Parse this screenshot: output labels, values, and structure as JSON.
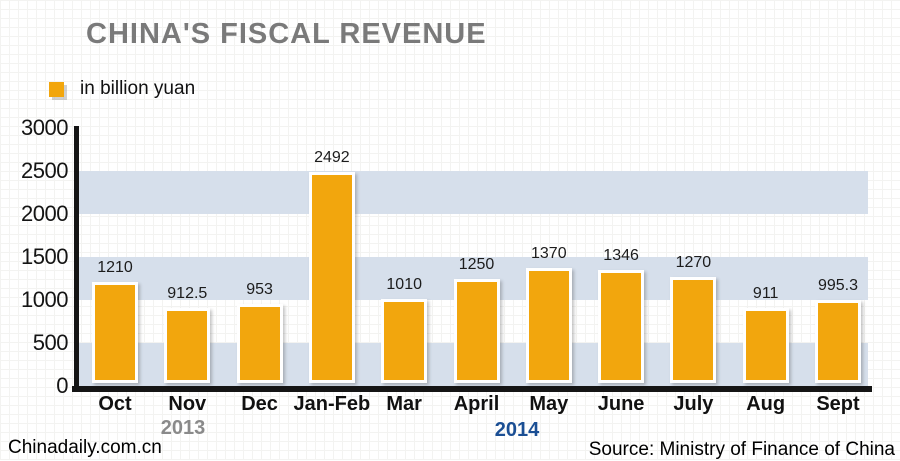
{
  "title": "CHINA'S FISCAL REVENUE",
  "legend": {
    "label": "in billion yuan",
    "swatch_color": "#F2A60D"
  },
  "chart_data": {
    "type": "bar",
    "categories": [
      "Oct",
      "Nov",
      "Dec",
      "Jan-Feb",
      "Mar",
      "April",
      "May",
      "June",
      "July",
      "Aug",
      "Sept"
    ],
    "values": [
      1210,
      912.5,
      953,
      2492,
      1010,
      1250,
      1370,
      1346,
      1270,
      911,
      995.3
    ],
    "title": "CHINA'S FISCAL REVENUE",
    "unit": "in billion yuan",
    "xlabel": "",
    "ylabel": "",
    "ylim": [
      0,
      3000
    ],
    "yticks": [
      0,
      500,
      1000,
      1500,
      2000,
      2500,
      3000
    ],
    "grid": "alternating horizontal bands",
    "legend_position": "top-left",
    "bar_color": "#F2A60D",
    "band_color": "#D6DFEB",
    "year_groups": [
      {
        "label": "2013",
        "color": "#8a8a8a",
        "months": [
          "Oct",
          "Nov",
          "Dec"
        ]
      },
      {
        "label": "2014",
        "color": "#1b4f94",
        "months": [
          "Jan-Feb",
          "Mar",
          "April",
          "May",
          "June",
          "July",
          "Aug",
          "Sept"
        ]
      }
    ]
  },
  "footer": {
    "left": "Chinadaily.com.cn",
    "right": "Source: Ministry of Finance of China"
  }
}
